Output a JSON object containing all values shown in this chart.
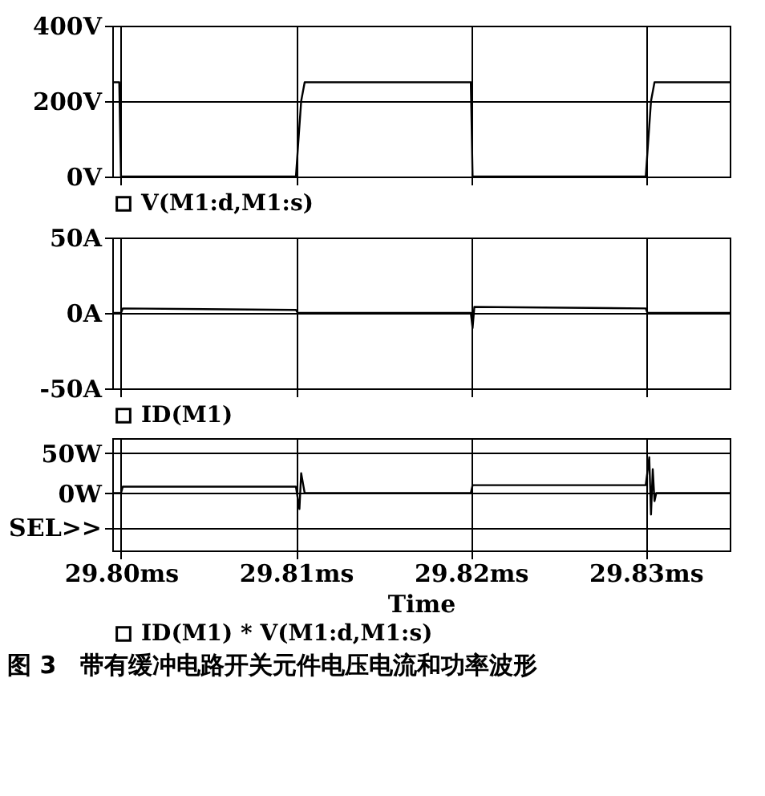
{
  "chart_data": [
    {
      "type": "line",
      "xlim": [
        29.7995,
        29.8348
      ],
      "xticks": [
        {
          "value": 29.8,
          "label": null
        },
        {
          "value": 29.81,
          "label": null
        },
        {
          "value": 29.82,
          "label": null
        },
        {
          "value": 29.83,
          "label": null
        }
      ],
      "ylim": [
        0,
        400
      ],
      "yticks": [
        {
          "value": 0,
          "label": "0V"
        },
        {
          "value": 200,
          "label": "200V"
        },
        {
          "value": 400,
          "label": "400V"
        }
      ],
      "grid": true,
      "legend": "bottom",
      "tick_labels": "y",
      "series": [
        {
          "name": "V(M1:d,M1:s)",
          "color": "#000000",
          "x": [
            29.7995,
            29.7999,
            29.8,
            29.81,
            29.8103,
            29.8105,
            29.82,
            29.8201,
            29.83,
            29.8303,
            29.8305,
            29.8348
          ],
          "values": [
            250,
            250,
            0,
            0,
            200,
            250,
            250,
            0,
            0,
            200,
            250,
            250
          ]
        }
      ]
    },
    {
      "type": "line",
      "xlim": [
        29.7995,
        29.8348
      ],
      "xticks": [
        {
          "value": 29.8,
          "label": null
        },
        {
          "value": 29.81,
          "label": null
        },
        {
          "value": 29.82,
          "label": null
        },
        {
          "value": 29.83,
          "label": null
        }
      ],
      "ylim": [
        -50,
        50
      ],
      "yticks": [
        {
          "value": -50,
          "label": "-50A"
        },
        {
          "value": 0,
          "label": "0A"
        },
        {
          "value": 50,
          "label": "50A"
        }
      ],
      "grid": true,
      "legend": "bottom",
      "tick_labels": "y",
      "series": [
        {
          "name": "ID(M1)",
          "color": "#000000",
          "x": [
            29.7995,
            29.8,
            29.8001,
            29.81,
            29.8101,
            29.82,
            29.8201,
            29.8202,
            29.83,
            29.8301,
            29.8348
          ],
          "values": [
            0,
            0,
            3,
            2,
            0,
            0,
            -10,
            4,
            3,
            0,
            0
          ]
        }
      ]
    },
    {
      "type": "line",
      "xlim": [
        29.7995,
        29.8348
      ],
      "xticks": [
        {
          "value": 29.8,
          "label": "29.80ms"
        },
        {
          "value": 29.81,
          "label": "29.81ms"
        },
        {
          "value": 29.82,
          "label": "29.82ms"
        },
        {
          "value": 29.83,
          "label": "29.83ms"
        }
      ],
      "ylim": [
        -72,
        69
      ],
      "yticks": [
        {
          "value": -43,
          "label": "SEL>>"
        },
        {
          "value": 0,
          "label": "0W"
        },
        {
          "value": 50,
          "label": "50W"
        }
      ],
      "grid": true,
      "legend": "bottom",
      "xlabel": "Time",
      "annotations": [
        "图 3　带有缓冲电路开关元件电压电流和功率波形"
      ],
      "series": [
        {
          "name": "ID(M1) * V(M1:d,M1:s)",
          "color": "#000000",
          "x": [
            29.7995,
            29.8,
            29.8001,
            29.81,
            29.8102,
            29.8103,
            29.8105,
            29.8106,
            29.82,
            29.8201,
            29.83,
            29.8302,
            29.8303,
            29.8304,
            29.8305,
            29.8306,
            29.8348
          ],
          "values": [
            0,
            0,
            8,
            8,
            -20,
            25,
            0,
            0,
            0,
            10,
            10,
            45,
            -27,
            30,
            -10,
            0,
            0
          ]
        }
      ]
    }
  ]
}
